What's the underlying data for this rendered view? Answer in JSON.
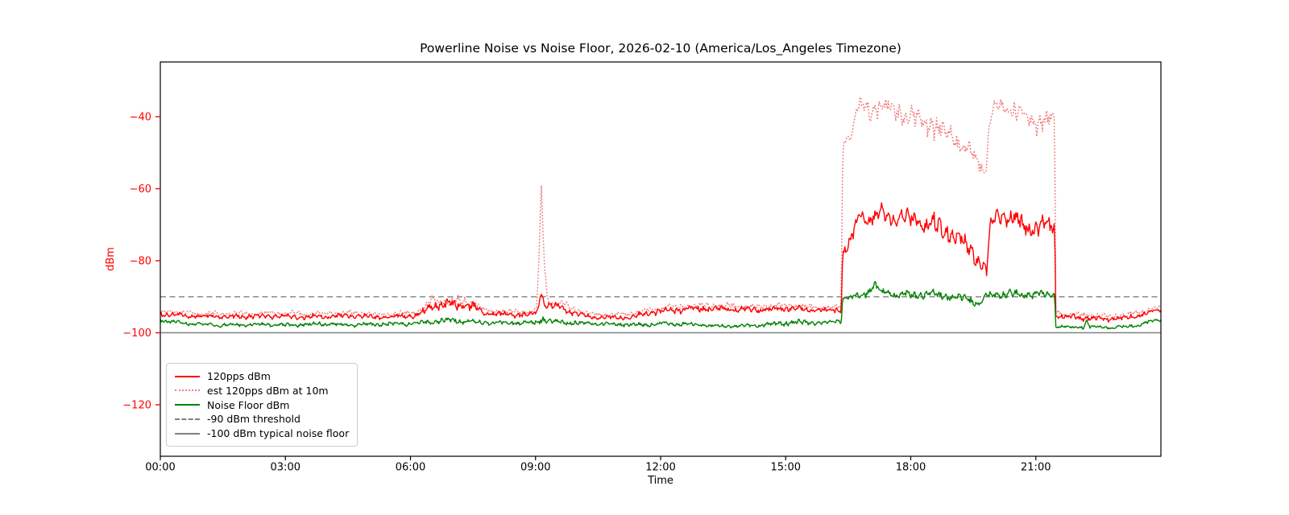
{
  "chart_data": {
    "type": "line",
    "title": "Powerline Noise vs Noise Floor, 2026-02-10 (America/Los_Angeles Timezone)",
    "xlabel": "Time",
    "ylabel": "dBm",
    "axis_label_color": "#ff0000",
    "x_tick_color": "#000000",
    "xlim": [
      0,
      24
    ],
    "ylim": [
      -134.3,
      -24.8
    ],
    "grid": false,
    "legend_position": "lower left",
    "sample_step_h": 0.02,
    "noise_seed": 42,
    "x_ticks": [
      {
        "label": "00:00",
        "value": 0
      },
      {
        "label": "03:00",
        "value": 3
      },
      {
        "label": "06:00",
        "value": 6
      },
      {
        "label": "09:00",
        "value": 9
      },
      {
        "label": "12:00",
        "value": 12
      },
      {
        "label": "15:00",
        "value": 15
      },
      {
        "label": "18:00",
        "value": 18
      },
      {
        "label": "21:00",
        "value": 21
      }
    ],
    "y_ticks": [
      {
        "label": "−40",
        "value": -40
      },
      {
        "label": "−60",
        "value": -60
      },
      {
        "label": "−80",
        "value": -80
      },
      {
        "label": "−100",
        "value": -100
      },
      {
        "label": "−120",
        "value": -120
      }
    ],
    "series": [
      {
        "name": "120pps dBm",
        "color": "#ff0000",
        "style": "solid",
        "type": "noisy",
        "width": 1.4,
        "phase": 1.7,
        "keypoints": [
          [
            0.0,
            -94.8,
            0.7
          ],
          [
            0.5,
            -95.2,
            0.7
          ],
          [
            1.5,
            -95.6,
            0.6
          ],
          [
            2.5,
            -95.4,
            0.7
          ],
          [
            3.5,
            -95.6,
            0.7
          ],
          [
            4.5,
            -95.3,
            0.7
          ],
          [
            5.3,
            -95.7,
            0.6
          ],
          [
            6.1,
            -95.3,
            0.7
          ],
          [
            6.35,
            -94.0,
            1.0
          ],
          [
            6.5,
            -92.2,
            1.3
          ],
          [
            6.9,
            -92.0,
            1.4
          ],
          [
            7.3,
            -92.3,
            1.4
          ],
          [
            7.55,
            -92.8,
            1.2
          ],
          [
            7.75,
            -94.6,
            0.8
          ],
          [
            8.3,
            -95.0,
            0.7
          ],
          [
            8.9,
            -95.0,
            0.7
          ],
          [
            9.05,
            -94.2,
            0.8
          ],
          [
            9.13,
            -88.8,
            0.8
          ],
          [
            9.22,
            -92.0,
            1.0
          ],
          [
            9.4,
            -92.6,
            1.0
          ],
          [
            9.6,
            -92.8,
            1.0
          ],
          [
            9.8,
            -94.0,
            0.8
          ],
          [
            10.3,
            -95.6,
            0.6
          ],
          [
            10.9,
            -95.9,
            0.6
          ],
          [
            11.4,
            -95.3,
            0.7
          ],
          [
            11.9,
            -94.2,
            0.8
          ],
          [
            12.3,
            -93.6,
            0.9
          ],
          [
            12.9,
            -93.4,
            0.9
          ],
          [
            13.5,
            -93.3,
            0.9
          ],
          [
            14.1,
            -93.7,
            0.8
          ],
          [
            14.7,
            -93.4,
            0.8
          ],
          [
            15.1,
            -93.2,
            0.8
          ],
          [
            15.5,
            -93.6,
            0.8
          ],
          [
            16.0,
            -93.9,
            0.8
          ],
          [
            16.33,
            -93.6,
            0.8
          ],
          [
            16.37,
            -77.5,
            1.5
          ],
          [
            16.55,
            -75.0,
            1.8
          ],
          [
            16.75,
            -68.0,
            2.0
          ],
          [
            17.0,
            -68.5,
            2.4
          ],
          [
            17.3,
            -67.0,
            2.4
          ],
          [
            17.6,
            -68.0,
            2.4
          ],
          [
            18.0,
            -68.6,
            2.6
          ],
          [
            18.4,
            -69.5,
            2.8
          ],
          [
            18.8,
            -71.0,
            2.8
          ],
          [
            19.1,
            -73.0,
            2.5
          ],
          [
            19.35,
            -76.0,
            2.2
          ],
          [
            19.6,
            -79.5,
            2.2
          ],
          [
            19.82,
            -83.5,
            1.5
          ],
          [
            19.9,
            -71.0,
            2.0
          ],
          [
            20.05,
            -67.5,
            2.0
          ],
          [
            20.3,
            -68.0,
            2.2
          ],
          [
            20.5,
            -68.5,
            2.4
          ],
          [
            20.7,
            -70.0,
            2.6
          ],
          [
            21.0,
            -71.5,
            2.6
          ],
          [
            21.25,
            -70.0,
            2.4
          ],
          [
            21.45,
            -70.5,
            2.0
          ],
          [
            21.48,
            -95.3,
            0.8
          ],
          [
            21.8,
            -95.6,
            0.8
          ],
          [
            22.3,
            -96.0,
            0.7
          ],
          [
            22.8,
            -96.2,
            0.7
          ],
          [
            23.2,
            -95.8,
            0.7
          ],
          [
            23.6,
            -94.8,
            0.7
          ],
          [
            23.85,
            -93.9,
            0.6
          ],
          [
            24.0,
            -93.6,
            0.6
          ]
        ]
      },
      {
        "name": "est 120pps dBm at 10m",
        "color": "#f08080",
        "style": "dotted",
        "type": "noisy",
        "width": 1.6,
        "phase": 3.9,
        "keypoints": [
          [
            0.0,
            -94.0,
            0.7
          ],
          [
            0.5,
            -94.4,
            0.7
          ],
          [
            1.5,
            -94.8,
            0.6
          ],
          [
            2.5,
            -94.6,
            0.7
          ],
          [
            3.5,
            -94.8,
            0.7
          ],
          [
            4.5,
            -94.5,
            0.7
          ],
          [
            5.3,
            -94.9,
            0.6
          ],
          [
            6.1,
            -94.5,
            0.7
          ],
          [
            6.35,
            -93.2,
            1.0
          ],
          [
            6.5,
            -91.4,
            1.3
          ],
          [
            6.9,
            -91.2,
            1.4
          ],
          [
            7.3,
            -91.5,
            1.4
          ],
          [
            7.55,
            -92.0,
            1.2
          ],
          [
            7.75,
            -93.8,
            0.8
          ],
          [
            8.3,
            -94.2,
            0.7
          ],
          [
            8.9,
            -94.2,
            0.7
          ],
          [
            9.03,
            -93.2,
            0.8
          ],
          [
            9.09,
            -76.0,
            2.0
          ],
          [
            9.14,
            -59.8,
            0.8
          ],
          [
            9.2,
            -78.0,
            2.0
          ],
          [
            9.28,
            -91.0,
            1.2
          ],
          [
            9.45,
            -91.8,
            1.0
          ],
          [
            9.65,
            -92.0,
            1.0
          ],
          [
            9.85,
            -93.2,
            0.8
          ],
          [
            10.3,
            -94.8,
            0.6
          ],
          [
            10.9,
            -95.1,
            0.6
          ],
          [
            11.4,
            -94.5,
            0.7
          ],
          [
            11.9,
            -93.4,
            0.8
          ],
          [
            12.3,
            -92.8,
            0.9
          ],
          [
            12.9,
            -92.6,
            0.9
          ],
          [
            13.5,
            -92.5,
            0.9
          ],
          [
            14.1,
            -92.9,
            0.8
          ],
          [
            14.7,
            -92.6,
            0.8
          ],
          [
            15.1,
            -92.4,
            0.8
          ],
          [
            15.5,
            -92.8,
            0.8
          ],
          [
            16.0,
            -93.1,
            0.8
          ],
          [
            16.33,
            -92.8,
            0.8
          ],
          [
            16.37,
            -48.0,
            2.5
          ],
          [
            16.55,
            -45.0,
            2.5
          ],
          [
            16.75,
            -36.5,
            2.0
          ],
          [
            17.0,
            -38.5,
            2.8
          ],
          [
            17.3,
            -36.8,
            2.8
          ],
          [
            17.6,
            -38.5,
            2.8
          ],
          [
            18.0,
            -40.0,
            3.0
          ],
          [
            18.4,
            -41.5,
            3.2
          ],
          [
            18.8,
            -44.0,
            3.2
          ],
          [
            19.1,
            -46.5,
            3.0
          ],
          [
            19.35,
            -49.5,
            2.6
          ],
          [
            19.6,
            -52.5,
            2.4
          ],
          [
            19.8,
            -55.0,
            1.8
          ],
          [
            19.9,
            -41.0,
            2.4
          ],
          [
            20.05,
            -36.8,
            2.2
          ],
          [
            20.3,
            -37.5,
            2.4
          ],
          [
            20.5,
            -38.0,
            2.6
          ],
          [
            20.7,
            -40.0,
            2.8
          ],
          [
            21.0,
            -42.0,
            2.8
          ],
          [
            21.25,
            -40.5,
            2.6
          ],
          [
            21.45,
            -41.0,
            2.2
          ],
          [
            21.48,
            -94.5,
            0.8
          ],
          [
            21.8,
            -94.8,
            0.8
          ],
          [
            22.3,
            -95.2,
            0.7
          ],
          [
            22.8,
            -95.4,
            0.7
          ],
          [
            23.2,
            -95.0,
            0.7
          ],
          [
            23.6,
            -94.0,
            0.7
          ],
          [
            23.85,
            -93.1,
            0.6
          ],
          [
            24.0,
            -92.8,
            0.6
          ]
        ]
      },
      {
        "name": "Noise Floor dBm",
        "color": "#008000",
        "style": "solid",
        "type": "noisy",
        "width": 1.4,
        "phase": 8.2,
        "keypoints": [
          [
            0.0,
            -96.6,
            0.5
          ],
          [
            0.6,
            -97.4,
            0.5
          ],
          [
            1.4,
            -97.9,
            0.5
          ],
          [
            2.2,
            -97.7,
            0.5
          ],
          [
            3.0,
            -97.9,
            0.5
          ],
          [
            3.8,
            -97.5,
            0.6
          ],
          [
            4.6,
            -97.8,
            0.5
          ],
          [
            5.4,
            -97.6,
            0.6
          ],
          [
            6.0,
            -97.4,
            0.6
          ],
          [
            6.5,
            -96.9,
            0.7
          ],
          [
            7.1,
            -96.6,
            0.8
          ],
          [
            7.7,
            -97.1,
            0.6
          ],
          [
            8.4,
            -97.3,
            0.6
          ],
          [
            9.0,
            -97.2,
            0.7
          ],
          [
            9.15,
            -96.1,
            0.9
          ],
          [
            9.4,
            -96.9,
            0.7
          ],
          [
            10.0,
            -97.3,
            0.6
          ],
          [
            10.8,
            -97.6,
            0.5
          ],
          [
            11.6,
            -97.8,
            0.5
          ],
          [
            12.2,
            -97.4,
            0.6
          ],
          [
            12.8,
            -97.7,
            0.5
          ],
          [
            13.6,
            -98.2,
            0.4
          ],
          [
            14.3,
            -98.0,
            0.5
          ],
          [
            14.9,
            -97.4,
            0.7
          ],
          [
            15.4,
            -97.1,
            0.7
          ],
          [
            15.9,
            -97.3,
            0.6
          ],
          [
            16.33,
            -96.6,
            0.7
          ],
          [
            16.37,
            -90.6,
            0.9
          ],
          [
            16.7,
            -89.8,
            1.0
          ],
          [
            17.0,
            -88.6,
            1.2
          ],
          [
            17.12,
            -87.0,
            1.4
          ],
          [
            17.3,
            -88.8,
            1.1
          ],
          [
            17.6,
            -89.4,
            1.0
          ],
          [
            18.0,
            -89.6,
            1.0
          ],
          [
            18.4,
            -89.2,
            1.1
          ],
          [
            18.8,
            -89.8,
            1.1
          ],
          [
            19.1,
            -90.2,
            1.0
          ],
          [
            19.4,
            -90.8,
            1.0
          ],
          [
            19.65,
            -92.0,
            0.9
          ],
          [
            19.8,
            -90.0,
            1.1
          ],
          [
            20.0,
            -89.6,
            1.1
          ],
          [
            20.3,
            -88.9,
            1.2
          ],
          [
            20.6,
            -89.6,
            1.0
          ],
          [
            20.9,
            -89.2,
            1.1
          ],
          [
            21.2,
            -89.4,
            1.0
          ],
          [
            21.45,
            -89.6,
            0.8
          ],
          [
            21.48,
            -98.2,
            0.5
          ],
          [
            21.9,
            -98.6,
            0.4
          ],
          [
            22.15,
            -98.3,
            0.5
          ],
          [
            22.22,
            -96.8,
            0.6
          ],
          [
            22.3,
            -98.4,
            0.4
          ],
          [
            22.9,
            -98.6,
            0.4
          ],
          [
            23.4,
            -98.0,
            0.5
          ],
          [
            23.75,
            -96.9,
            0.5
          ],
          [
            24.0,
            -96.2,
            0.5
          ]
        ]
      },
      {
        "name": "-90 dBm threshold",
        "color": "#808080",
        "style": "dashed",
        "type": "hline",
        "width": 1.4,
        "y": -90
      },
      {
        "name": "-100 dBm typical noise floor",
        "color": "#808080",
        "style": "solid",
        "type": "hline",
        "width": 1.4,
        "y": -100
      }
    ]
  }
}
